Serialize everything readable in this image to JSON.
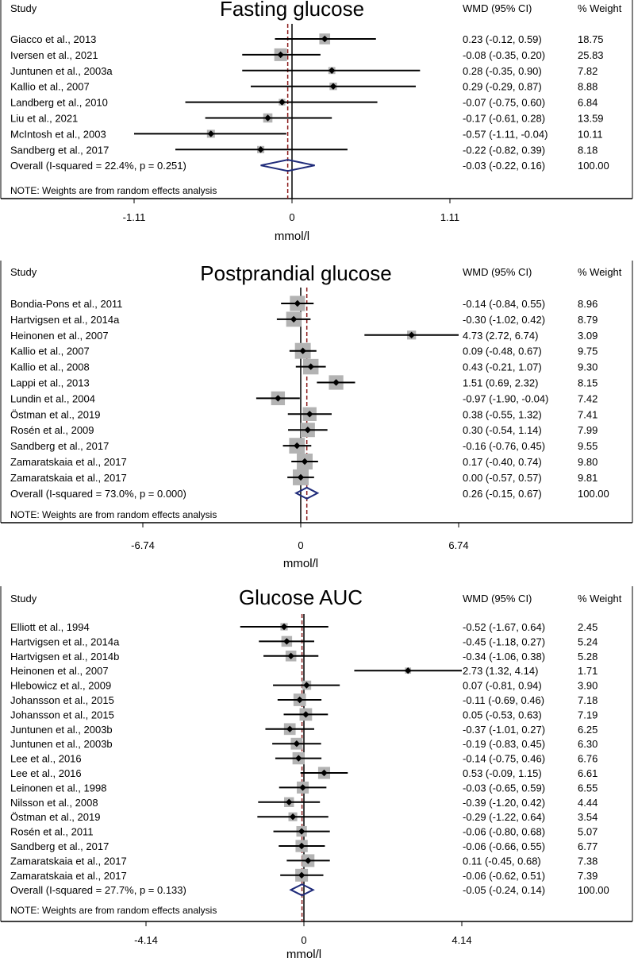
{
  "colors": {
    "title": "#1f3864",
    "diamond": "#1f2b7a",
    "ref_line": "#8b1a1a",
    "weight_box": "#b3b3b3",
    "text": "#000000"
  },
  "chart_data": [
    {
      "type": "forest",
      "title": "Fasting glucose",
      "col_study": "Study",
      "col_ci": "WMD (95% CI)",
      "col_weight": "% Weight",
      "xlabel": "mmol/l",
      "xlim": [
        -1.55,
        1.55
      ],
      "xticks": [
        "-1.11",
        "0",
        "1.11"
      ],
      "overall_estimate": -0.03,
      "note": "NOTE: Weights are from random effects analysis",
      "studies": [
        {
          "name": "Giacco et al., 2013",
          "est": 0.23,
          "lo": -0.12,
          "hi": 0.59,
          "ci_text": "0.23 (-0.12, 0.59)",
          "weight": "18.75"
        },
        {
          "name": "Iversen et al., 2021",
          "est": -0.08,
          "lo": -0.35,
          "hi": 0.2,
          "ci_text": "-0.08 (-0.35, 0.20)",
          "weight": "25.83"
        },
        {
          "name": "Juntunen et al., 2003a",
          "est": 0.28,
          "lo": -0.35,
          "hi": 0.9,
          "ci_text": "0.28 (-0.35, 0.90)",
          "weight": "7.82"
        },
        {
          "name": "Kallio et al., 2007",
          "est": 0.29,
          "lo": -0.29,
          "hi": 0.87,
          "ci_text": "0.29 (-0.29, 0.87)",
          "weight": "8.88"
        },
        {
          "name": "Landberg et al., 2010",
          "est": -0.07,
          "lo": -0.75,
          "hi": 0.6,
          "ci_text": "-0.07 (-0.75, 0.60)",
          "weight": "6.84"
        },
        {
          "name": "Liu et al., 2021",
          "est": -0.17,
          "lo": -0.61,
          "hi": 0.28,
          "ci_text": "-0.17 (-0.61, 0.28)",
          "weight": "13.59"
        },
        {
          "name": "McIntosh et al., 2003",
          "est": -0.57,
          "lo": -1.11,
          "hi": -0.04,
          "ci_text": "-0.57 (-1.11, -0.04)",
          "weight": "10.11"
        },
        {
          "name": "Sandberg et al., 2017",
          "est": -0.22,
          "lo": -0.82,
          "hi": 0.39,
          "ci_text": "-0.22 (-0.82, 0.39)",
          "weight": "8.18"
        }
      ],
      "overall": {
        "name": "Overall  (I-squared = 22.4%, p = 0.251)",
        "est": -0.03,
        "lo": -0.22,
        "hi": 0.16,
        "ci_text": "-0.03 (-0.22, 0.16)",
        "weight": "100.00"
      }
    },
    {
      "type": "forest",
      "title": "Postprandial glucose",
      "col_study": "Study",
      "col_ci": "WMD (95% CI)",
      "col_weight": "% Weight",
      "xlabel": "mmol/l",
      "xlim": [
        -9.3,
        9.3
      ],
      "xticks": [
        "-6.74",
        "0",
        "6.74"
      ],
      "overall_estimate": 0.26,
      "note": "NOTE: Weights are from random effects analysis",
      "studies": [
        {
          "name": "Bondia-Pons et al., 2011",
          "est": -0.14,
          "lo": -0.84,
          "hi": 0.55,
          "ci_text": "-0.14 (-0.84, 0.55)",
          "weight": "8.96"
        },
        {
          "name": "Hartvigsen et al., 2014a",
          "est": -0.3,
          "lo": -1.02,
          "hi": 0.42,
          "ci_text": "-0.30 (-1.02, 0.42)",
          "weight": "8.79"
        },
        {
          "name": "Heinonen et al., 2007",
          "est": 4.73,
          "lo": 2.72,
          "hi": 6.74,
          "ci_text": "4.73 (2.72, 6.74)",
          "weight": "3.09"
        },
        {
          "name": "Kallio et al., 2007",
          "est": 0.09,
          "lo": -0.48,
          "hi": 0.67,
          "ci_text": "0.09 (-0.48, 0.67)",
          "weight": "9.75"
        },
        {
          "name": "Kallio et al., 2008",
          "est": 0.43,
          "lo": -0.21,
          "hi": 1.07,
          "ci_text": "0.43 (-0.21, 1.07)",
          "weight": "9.30"
        },
        {
          "name": "Lappi et al., 2013",
          "est": 1.51,
          "lo": 0.69,
          "hi": 2.32,
          "ci_text": "1.51 (0.69, 2.32)",
          "weight": "8.15"
        },
        {
          "name": "Lundin et al., 2004",
          "est": -0.97,
          "lo": -1.9,
          "hi": -0.04,
          "ci_text": "-0.97 (-1.90, -0.04)",
          "weight": "7.42"
        },
        {
          "name": "Östman et al., 2019",
          "est": 0.38,
          "lo": -0.55,
          "hi": 1.32,
          "ci_text": "0.38 (-0.55, 1.32)",
          "weight": "7.41"
        },
        {
          "name": "Rosén et al., 2009",
          "est": 0.3,
          "lo": -0.54,
          "hi": 1.14,
          "ci_text": "0.30 (-0.54, 1.14)",
          "weight": "7.99"
        },
        {
          "name": "Sandberg et al., 2017",
          "est": -0.16,
          "lo": -0.76,
          "hi": 0.45,
          "ci_text": "-0.16 (-0.76, 0.45)",
          "weight": "9.55"
        },
        {
          "name": "Zamaratskaia et al., 2017",
          "est": 0.17,
          "lo": -0.4,
          "hi": 0.74,
          "ci_text": "0.17 (-0.40, 0.74)",
          "weight": "9.80"
        },
        {
          "name": "Zamaratskaia et al., 2017",
          "est": 0.0,
          "lo": -0.57,
          "hi": 0.57,
          "ci_text": "0.00 (-0.57, 0.57)",
          "weight": "9.81"
        }
      ],
      "overall": {
        "name": "Overall  (I-squared = 73.0%, p = 0.000)",
        "est": 0.26,
        "lo": -0.15,
        "hi": 0.67,
        "ci_text": "0.26 (-0.15, 0.67)",
        "weight": "100.00"
      }
    },
    {
      "type": "forest",
      "title": "Glucose AUC",
      "col_study": "Study",
      "col_ci": "WMD (95% CI)",
      "col_weight": "% Weight",
      "xlabel": "mmol/l",
      "xlim": [
        -5.8,
        5.8
      ],
      "xticks": [
        "-4.14",
        "0",
        "4.14"
      ],
      "overall_estimate": -0.05,
      "note": "NOTE: Weights are from random effects analysis",
      "studies": [
        {
          "name": "Elliott et al., 1994",
          "est": -0.52,
          "lo": -1.67,
          "hi": 0.64,
          "ci_text": "-0.52 (-1.67, 0.64)",
          "weight": "2.45"
        },
        {
          "name": "Hartvigsen et al., 2014a",
          "est": -0.45,
          "lo": -1.18,
          "hi": 0.27,
          "ci_text": "-0.45 (-1.18, 0.27)",
          "weight": "5.24"
        },
        {
          "name": "Hartvigsen et al., 2014b",
          "est": -0.34,
          "lo": -1.06,
          "hi": 0.38,
          "ci_text": "-0.34 (-1.06, 0.38)",
          "weight": "5.28"
        },
        {
          "name": "Heinonen et al., 2007",
          "est": 2.73,
          "lo": 1.32,
          "hi": 4.14,
          "ci_text": "2.73 (1.32, 4.14)",
          "weight": "1.71"
        },
        {
          "name": "Hlebowicz et al., 2009",
          "est": 0.07,
          "lo": -0.81,
          "hi": 0.94,
          "ci_text": "0.07 (-0.81, 0.94)",
          "weight": "3.90"
        },
        {
          "name": "Johansson et al., 2015",
          "est": -0.11,
          "lo": -0.69,
          "hi": 0.46,
          "ci_text": "-0.11 (-0.69, 0.46)",
          "weight": "7.18"
        },
        {
          "name": "Johansson et al., 2015",
          "est": 0.05,
          "lo": -0.53,
          "hi": 0.63,
          "ci_text": "0.05 (-0.53, 0.63)",
          "weight": "7.19"
        },
        {
          "name": "Juntunen et al., 2003b",
          "est": -0.37,
          "lo": -1.01,
          "hi": 0.27,
          "ci_text": "-0.37 (-1.01, 0.27)",
          "weight": "6.25"
        },
        {
          "name": "Juntunen et al., 2003b",
          "est": -0.19,
          "lo": -0.83,
          "hi": 0.45,
          "ci_text": "-0.19 (-0.83, 0.45)",
          "weight": "6.30"
        },
        {
          "name": "Lee et al., 2016",
          "est": -0.14,
          "lo": -0.75,
          "hi": 0.46,
          "ci_text": "-0.14 (-0.75, 0.46)",
          "weight": "6.76"
        },
        {
          "name": "Lee et al., 2016",
          "est": 0.53,
          "lo": -0.09,
          "hi": 1.15,
          "ci_text": "0.53 (-0.09, 1.15)",
          "weight": "6.61"
        },
        {
          "name": "Leinonen et al., 1998",
          "est": -0.03,
          "lo": -0.65,
          "hi": 0.59,
          "ci_text": "-0.03 (-0.65, 0.59)",
          "weight": "6.55"
        },
        {
          "name": "Nilsson et al., 2008",
          "est": -0.39,
          "lo": -1.2,
          "hi": 0.42,
          "ci_text": "-0.39 (-1.20, 0.42)",
          "weight": "4.44"
        },
        {
          "name": "Östman et al., 2019",
          "est": -0.29,
          "lo": -1.22,
          "hi": 0.64,
          "ci_text": "-0.29 (-1.22, 0.64)",
          "weight": "3.54"
        },
        {
          "name": "Rosén et al., 2011",
          "est": -0.06,
          "lo": -0.8,
          "hi": 0.68,
          "ci_text": "-0.06 (-0.80, 0.68)",
          "weight": "5.07"
        },
        {
          "name": "Sandberg et al., 2017",
          "est": -0.06,
          "lo": -0.66,
          "hi": 0.55,
          "ci_text": "-0.06 (-0.66, 0.55)",
          "weight": "6.77"
        },
        {
          "name": "Zamaratskaia et al., 2017",
          "est": 0.11,
          "lo": -0.45,
          "hi": 0.68,
          "ci_text": "0.11 (-0.45, 0.68)",
          "weight": "7.38"
        },
        {
          "name": "Zamaratskaia et al., 2017",
          "est": -0.06,
          "lo": -0.62,
          "hi": 0.51,
          "ci_text": "-0.06 (-0.62, 0.51)",
          "weight": "7.39"
        }
      ],
      "overall": {
        "name": "Overall  (I-squared = 27.7%, p = 0.133)",
        "est": -0.05,
        "lo": -0.24,
        "hi": 0.14,
        "ci_text": "-0.05 (-0.24, 0.14)",
        "weight": "100.00"
      }
    }
  ]
}
